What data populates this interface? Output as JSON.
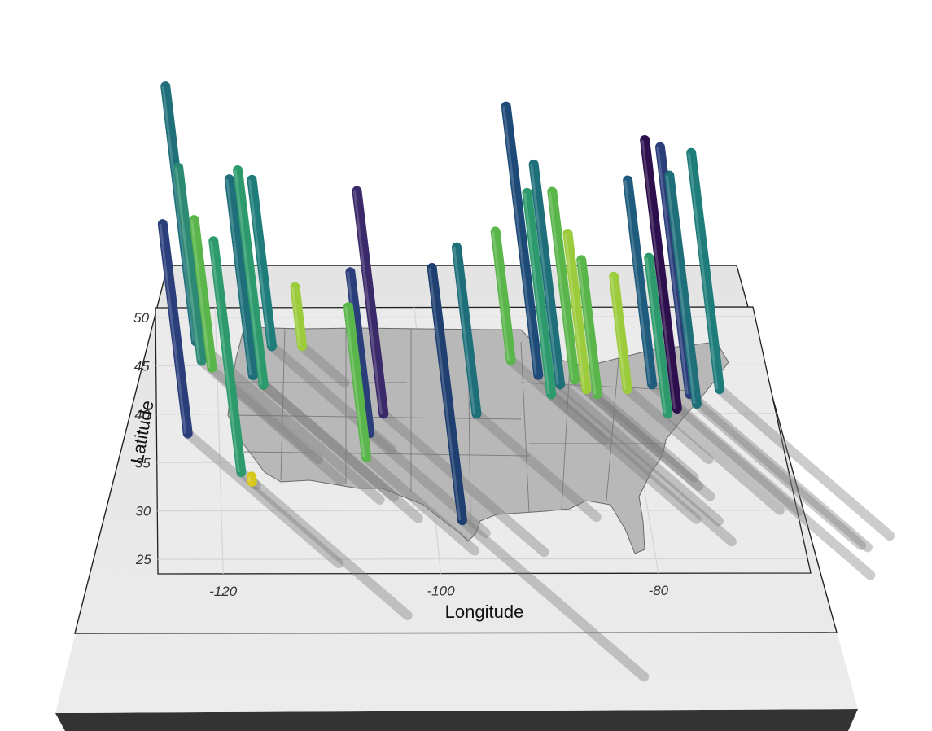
{
  "chart_data": {
    "type": "3d-bar-map",
    "title": "",
    "xlabel": "Longitude",
    "ylabel": "Latitude",
    "xlim": [
      -126,
      -66
    ],
    "ylim": [
      23.5,
      51
    ],
    "x_ticks": [
      "-120",
      "-100",
      "-80"
    ],
    "y_ticks": [
      "25",
      "30",
      "35",
      "40",
      "45",
      "50"
    ],
    "palette": [
      "#2d0f4d",
      "#2a3e7a",
      "#1e5b7c",
      "#1e7d7a",
      "#2c9a6c",
      "#5ab54a",
      "#9ccb3c",
      "#d8c81d"
    ],
    "grid": true,
    "legend": "none",
    "points": [
      {
        "lon": -123.0,
        "lat": 38.0,
        "height": 0.78,
        "color": "#2a3e7a"
      },
      {
        "lon": -122.0,
        "lat": 47.5,
        "height": 0.95,
        "color": "#1e6f7a"
      },
      {
        "lon": -121.5,
        "lat": 45.5,
        "height": 0.72,
        "color": "#2c8a74"
      },
      {
        "lon": -120.5,
        "lat": 44.8,
        "height": 0.55,
        "color": "#5ab54a"
      },
      {
        "lon": -118.0,
        "lat": 34.0,
        "height": 0.86,
        "color": "#2c9a6c"
      },
      {
        "lon": -117.0,
        "lat": 33.0,
        "height": 0.02,
        "color": "#d8c81d"
      },
      {
        "lon": -116.5,
        "lat": 44.0,
        "height": 0.73,
        "color": "#1e6f7a"
      },
      {
        "lon": -115.5,
        "lat": 43.0,
        "height": 0.8,
        "color": "#2c9a6c"
      },
      {
        "lon": -114.5,
        "lat": 47.0,
        "height": 0.62,
        "color": "#1e7d7a"
      },
      {
        "lon": -111.5,
        "lat": 47.0,
        "height": 0.22,
        "color": "#9ccb3c"
      },
      {
        "lon": -105.5,
        "lat": 38.0,
        "height": 0.6,
        "color": "#2a3e7a"
      },
      {
        "lon": -106.0,
        "lat": 35.5,
        "height": 0.56,
        "color": "#5ab54a"
      },
      {
        "lon": -104.0,
        "lat": 40.0,
        "height": 0.83,
        "color": "#3b2a6a"
      },
      {
        "lon": -97.5,
        "lat": 29.0,
        "height": 0.94,
        "color": "#1e3f70"
      },
      {
        "lon": -95.0,
        "lat": 40.0,
        "height": 0.62,
        "color": "#1e6f7a"
      },
      {
        "lon": -91.0,
        "lat": 45.5,
        "height": 0.48,
        "color": "#5ab54a"
      },
      {
        "lon": -88.5,
        "lat": 44.0,
        "height": 1.0,
        "color": "#1e4a78"
      },
      {
        "lon": -87.5,
        "lat": 42.0,
        "height": 0.75,
        "color": "#2c9a6c"
      },
      {
        "lon": -86.5,
        "lat": 43.0,
        "height": 0.82,
        "color": "#1e6f7a"
      },
      {
        "lon": -85.0,
        "lat": 43.5,
        "height": 0.7,
        "color": "#5ab54a"
      },
      {
        "lon": -84.0,
        "lat": 42.5,
        "height": 0.58,
        "color": "#9ccb3c"
      },
      {
        "lon": -83.0,
        "lat": 42.0,
        "height": 0.5,
        "color": "#5ab54a"
      },
      {
        "lon": -80.0,
        "lat": 42.5,
        "height": 0.42,
        "color": "#9ccb3c"
      },
      {
        "lon": -77.5,
        "lat": 43.0,
        "height": 0.76,
        "color": "#1e5b7c"
      },
      {
        "lon": -76.5,
        "lat": 40.0,
        "height": 0.58,
        "color": "#2c9a6c"
      },
      {
        "lon": -75.5,
        "lat": 40.5,
        "height": 1.0,
        "color": "#2d0f4d"
      },
      {
        "lon": -74.0,
        "lat": 42.0,
        "height": 0.92,
        "color": "#2a3e7a"
      },
      {
        "lon": -73.5,
        "lat": 41.0,
        "height": 0.85,
        "color": "#1e6f7a"
      },
      {
        "lon": -71.0,
        "lat": 42.5,
        "height": 0.88,
        "color": "#1e7d7a"
      }
    ]
  }
}
